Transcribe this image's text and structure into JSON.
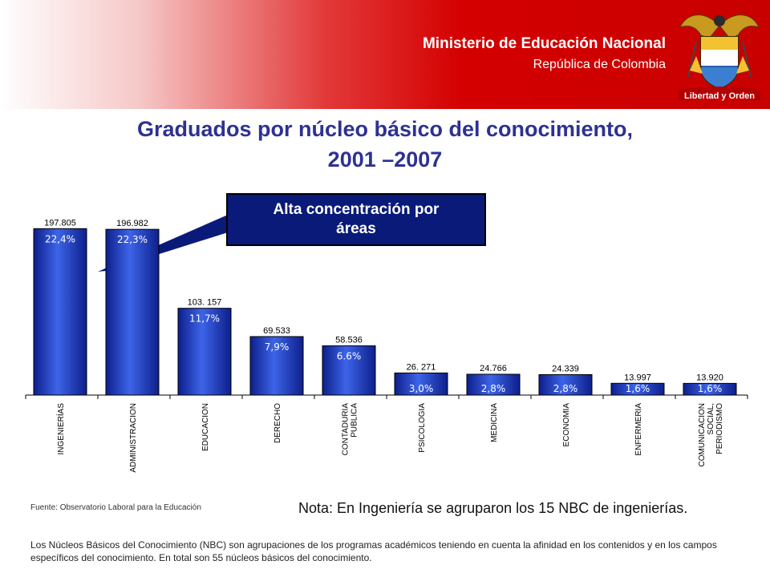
{
  "header": {
    "ministry": "Ministerio de Educación Nacional",
    "republic": "República de Colombia",
    "seal_motto": "Libertad y Orden"
  },
  "title_line1": "Graduados por núcleo básico del conocimiento,",
  "title_line2": "2001 –2007",
  "callout": {
    "line1": "Alta concentración por",
    "line2": "áreas"
  },
  "chart_data": {
    "type": "bar",
    "title": "Graduados por núcleo básico del conocimiento, 2001 –2007",
    "categories": [
      "INGENIERÍAS",
      "ADMINISTRACION",
      "EDUCACION",
      "DERECHO",
      "CONTADURIA PUBLICA",
      "PSICOLOGIA",
      "MEDICINA",
      "ECONOMIA",
      "ENFERMERIA",
      "COMUNICACION SOCIAL, PERIODISMO"
    ],
    "values": [
      197805,
      196982,
      103157,
      69533,
      58536,
      26271,
      24766,
      24339,
      13997,
      13920
    ],
    "value_labels": [
      "197.805",
      "196.982",
      "103. 157",
      "69.533",
      "58.536",
      "26. 271",
      "24.766",
      "24.339",
      "13.997",
      "13.920"
    ],
    "percent_labels": [
      "22,4%",
      "22,3%",
      "11,7%",
      "7,9%",
      "6.6%",
      "3,0%",
      "2,8%",
      "2,8%",
      "1,6%",
      "1,6%"
    ],
    "ylim": [
      0,
      200000
    ],
    "grid": false,
    "colors": {
      "bar_light": "#3d64e8",
      "bar_dark": "#0d1f8c",
      "bar_outline": "#000000",
      "percent_text": "#ffffff"
    }
  },
  "source": "Fuente: Observatorio Laboral para la Educación",
  "note": "Nota: En Ingeniería se agruparon los 15 NBC de ingenierías.",
  "footer": "Los Núcleos Básicos del Conocimiento (NBC) son agrupaciones de los programas académicos teniendo en cuenta la afinidad en los contenidos y en los campos específicos del conocimiento. En total son 55 núcleos básicos del conocimiento.",
  "colors": {
    "header_red": "#d40000",
    "title_blue": "#2e3192",
    "callout_bg": "#0a1a78"
  }
}
